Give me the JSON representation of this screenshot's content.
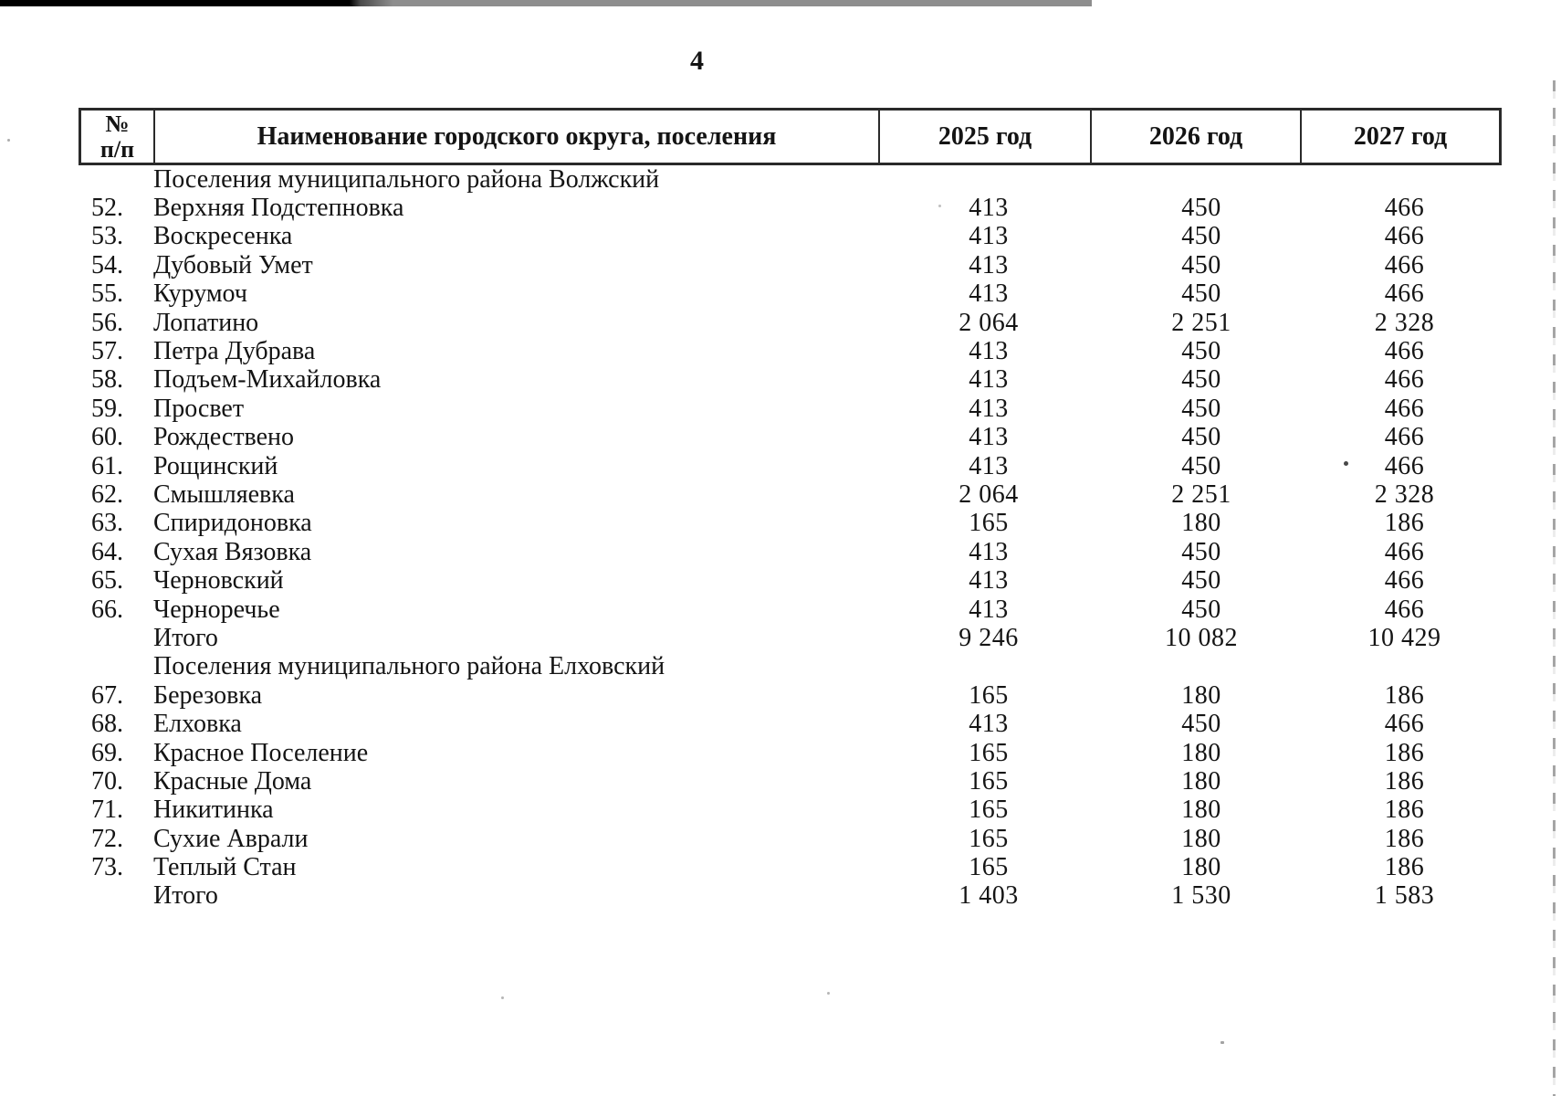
{
  "page": {
    "number": "4"
  },
  "table": {
    "headers": {
      "num_line1": "№",
      "num_line2": "п/п",
      "name": "Наименование городского округа, поселения",
      "y2025": "2025 год",
      "y2026": "2026 год",
      "y2027": "2027 год"
    },
    "rows": [
      {
        "type": "section",
        "num": "",
        "name": "Поселения муниципального района Волжский",
        "v2025": "",
        "v2026": "",
        "v2027": ""
      },
      {
        "type": "item",
        "num": "52.",
        "name": "Верхняя Подстепновка",
        "v2025": "413",
        "v2026": "450",
        "v2027": "466"
      },
      {
        "type": "item",
        "num": "53.",
        "name": "Воскресенка",
        "v2025": "413",
        "v2026": "450",
        "v2027": "466"
      },
      {
        "type": "item",
        "num": "54.",
        "name": "Дубовый Умет",
        "v2025": "413",
        "v2026": "450",
        "v2027": "466"
      },
      {
        "type": "item",
        "num": "55.",
        "name": "Курумоч",
        "v2025": "413",
        "v2026": "450",
        "v2027": "466"
      },
      {
        "type": "item",
        "num": "56.",
        "name": "Лопатино",
        "v2025": "2 064",
        "v2026": "2 251",
        "v2027": "2 328"
      },
      {
        "type": "item",
        "num": "57.",
        "name": "Петра Дубрава",
        "v2025": "413",
        "v2026": "450",
        "v2027": "466"
      },
      {
        "type": "item",
        "num": "58.",
        "name": "Подъем-Михайловка",
        "v2025": "413",
        "v2026": "450",
        "v2027": "466"
      },
      {
        "type": "item",
        "num": "59.",
        "name": "Просвет",
        "v2025": "413",
        "v2026": "450",
        "v2027": "466"
      },
      {
        "type": "item",
        "num": "60.",
        "name": "Рождествено",
        "v2025": "413",
        "v2026": "450",
        "v2027": "466"
      },
      {
        "type": "item",
        "num": "61.",
        "name": "Рощинский",
        "v2025": "413",
        "v2026": "450",
        "v2027": "466"
      },
      {
        "type": "item",
        "num": "62.",
        "name": "Смышляевка",
        "v2025": "2 064",
        "v2026": "2 251",
        "v2027": "2 328"
      },
      {
        "type": "item",
        "num": "63.",
        "name": "Спиридоновка",
        "v2025": "165",
        "v2026": "180",
        "v2027": "186"
      },
      {
        "type": "item",
        "num": "64.",
        "name": "Сухая Вязовка",
        "v2025": "413",
        "v2026": "450",
        "v2027": "466"
      },
      {
        "type": "item",
        "num": "65.",
        "name": "Черновский",
        "v2025": "413",
        "v2026": "450",
        "v2027": "466"
      },
      {
        "type": "item",
        "num": "66.",
        "name": "Черноречье",
        "v2025": "413",
        "v2026": "450",
        "v2027": "466"
      },
      {
        "type": "total",
        "num": "",
        "name": "Итого",
        "v2025": "9 246",
        "v2026": "10 082",
        "v2027": "10 429"
      },
      {
        "type": "section",
        "num": "",
        "name": "Поселения муниципального района Елховский",
        "v2025": "",
        "v2026": "",
        "v2027": ""
      },
      {
        "type": "item",
        "num": "67.",
        "name": "Березовка",
        "v2025": "165",
        "v2026": "180",
        "v2027": "186"
      },
      {
        "type": "item",
        "num": "68.",
        "name": "Елховка",
        "v2025": "413",
        "v2026": "450",
        "v2027": "466"
      },
      {
        "type": "item",
        "num": "69.",
        "name": "Красное Поселение",
        "v2025": "165",
        "v2026": "180",
        "v2027": "186"
      },
      {
        "type": "item",
        "num": "70.",
        "name": "Красные Дома",
        "v2025": "165",
        "v2026": "180",
        "v2027": "186"
      },
      {
        "type": "item",
        "num": "71.",
        "name": "Никитинка",
        "v2025": "165",
        "v2026": "180",
        "v2027": "186"
      },
      {
        "type": "item",
        "num": "72.",
        "name": "Сухие Аврали",
        "v2025": "165",
        "v2026": "180",
        "v2027": "186"
      },
      {
        "type": "item",
        "num": "73.",
        "name": "Теплый Стан",
        "v2025": "165",
        "v2026": "180",
        "v2027": "186"
      },
      {
        "type": "total",
        "num": "",
        "name": "Итого",
        "v2025": "1 403",
        "v2026": "1 530",
        "v2027": "1 583"
      }
    ]
  }
}
